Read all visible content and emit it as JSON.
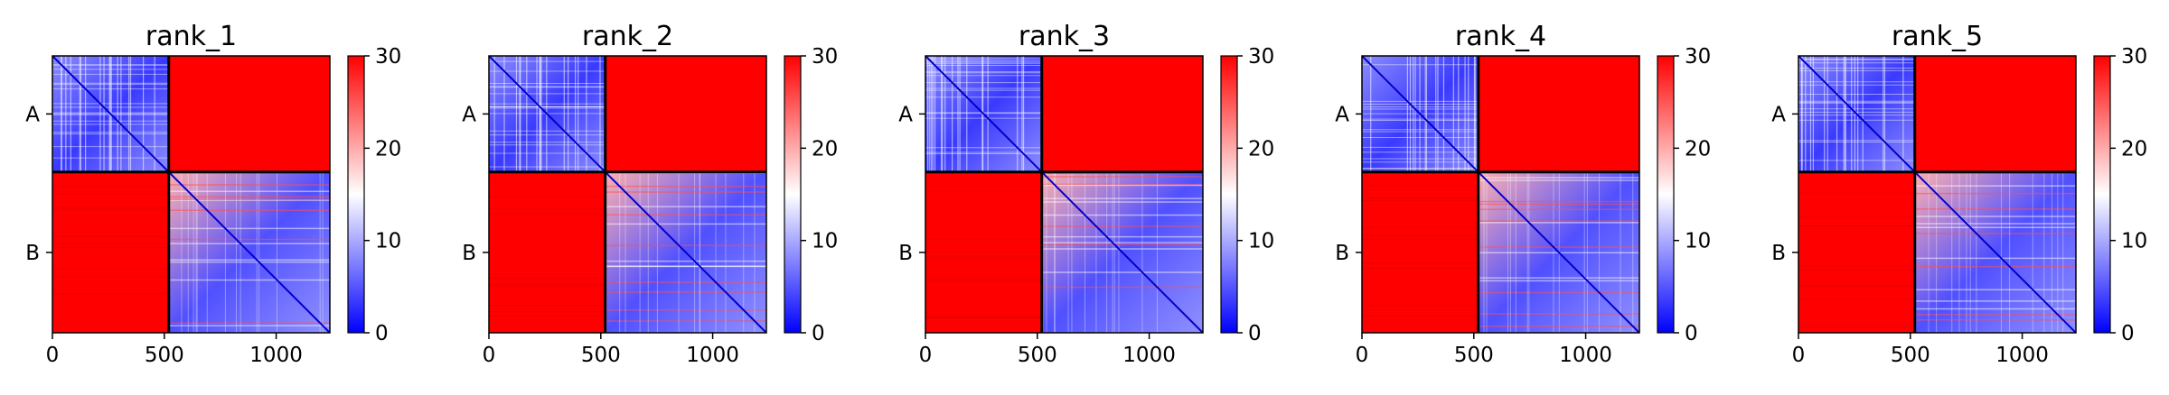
{
  "chart_data": [
    {
      "type": "heatmap",
      "title": "rank_1",
      "chains": [
        {
          "label": "A",
          "start": 0,
          "end": 520
        },
        {
          "label": "B",
          "start": 520,
          "end": 1240
        }
      ],
      "xticks": [
        0,
        500,
        1000
      ],
      "xlim": [
        0,
        1240
      ],
      "colorbar": {
        "min": 0,
        "max": 30,
        "ticks": [
          0,
          10,
          20,
          30
        ],
        "colormap": "bwr",
        "low_color": "#0000ff",
        "mid_color": "#ffffff",
        "high_color": "#ff0000"
      },
      "grid": false
    },
    {
      "type": "heatmap",
      "title": "rank_2",
      "chains": [
        {
          "label": "A",
          "start": 0,
          "end": 520
        },
        {
          "label": "B",
          "start": 520,
          "end": 1240
        }
      ],
      "xticks": [
        0,
        500,
        1000
      ],
      "xlim": [
        0,
        1240
      ],
      "colorbar": {
        "min": 0,
        "max": 30,
        "ticks": [
          0,
          10,
          20,
          30
        ],
        "colormap": "bwr",
        "low_color": "#0000ff",
        "mid_color": "#ffffff",
        "high_color": "#ff0000"
      },
      "grid": false
    },
    {
      "type": "heatmap",
      "title": "rank_3",
      "chains": [
        {
          "label": "A",
          "start": 0,
          "end": 520
        },
        {
          "label": "B",
          "start": 520,
          "end": 1240
        }
      ],
      "xticks": [
        0,
        500,
        1000
      ],
      "xlim": [
        0,
        1240
      ],
      "colorbar": {
        "min": 0,
        "max": 30,
        "ticks": [
          0,
          10,
          20,
          30
        ],
        "colormap": "bwr",
        "low_color": "#0000ff",
        "mid_color": "#ffffff",
        "high_color": "#ff0000"
      },
      "grid": false
    },
    {
      "type": "heatmap",
      "title": "rank_4",
      "chains": [
        {
          "label": "A",
          "start": 0,
          "end": 520
        },
        {
          "label": "B",
          "start": 520,
          "end": 1240
        }
      ],
      "xticks": [
        0,
        500,
        1000
      ],
      "xlim": [
        0,
        1240
      ],
      "colorbar": {
        "min": 0,
        "max": 30,
        "ticks": [
          0,
          10,
          20,
          30
        ],
        "colormap": "bwr",
        "low_color": "#0000ff",
        "mid_color": "#ffffff",
        "high_color": "#ff0000"
      },
      "grid": false
    },
    {
      "type": "heatmap",
      "title": "rank_5",
      "chains": [
        {
          "label": "A",
          "start": 0,
          "end": 520
        },
        {
          "label": "B",
          "start": 520,
          "end": 1240
        }
      ],
      "xticks": [
        0,
        500,
        1000
      ],
      "xlim": [
        0,
        1240
      ],
      "colorbar": {
        "min": 0,
        "max": 30,
        "ticks": [
          0,
          10,
          20,
          30
        ],
        "colormap": "bwr",
        "low_color": "#0000ff",
        "mid_color": "#ffffff",
        "high_color": "#ff0000"
      },
      "grid": false
    }
  ]
}
